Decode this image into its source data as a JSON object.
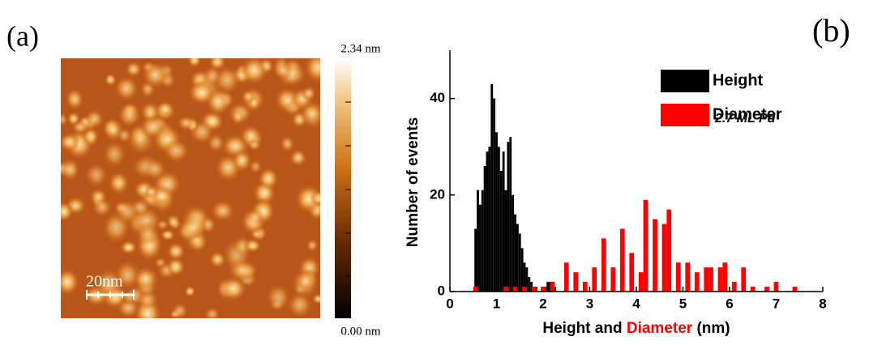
{
  "panel_a": {
    "label": "(a)",
    "colorbar_max": "2.34 nm",
    "colorbar_min": "0.00 nm",
    "scale_bar": "20nm"
  },
  "chart_data": {
    "type": "bar",
    "panel_label": "(b)",
    "xlabel": [
      "Height and",
      "Diameter",
      "(nm)"
    ],
    "ylabel": "Number of events",
    "annotation": "2.7 ML Pd",
    "xlim": [
      0,
      8
    ],
    "xticks": [
      0,
      1,
      2,
      3,
      4,
      5,
      6,
      7,
      8
    ],
    "ylim": [
      0,
      50
    ],
    "yticks": [
      0,
      20,
      40
    ],
    "legend": "upper right",
    "series": [
      {
        "name": "Height",
        "color": "#000000",
        "x": [
          0.55,
          0.6,
          0.65,
          0.7,
          0.75,
          0.8,
          0.85,
          0.9,
          0.95,
          1.0,
          1.05,
          1.1,
          1.15,
          1.2,
          1.25,
          1.3,
          1.35,
          1.4,
          1.45,
          1.5,
          1.55,
          1.6,
          1.65,
          1.7,
          1.75,
          1.8,
          1.85,
          1.9,
          1.95,
          2.0,
          2.05,
          2.1,
          2.15,
          2.2,
          2.25
        ],
        "values": [
          13,
          21,
          18,
          21,
          26,
          29,
          30,
          43,
          40,
          33,
          30,
          25,
          29,
          21,
          31,
          32,
          20,
          16,
          14,
          12,
          9,
          6,
          5,
          3,
          2,
          1,
          1,
          0,
          0,
          0,
          1,
          2,
          2,
          2,
          1
        ]
      },
      {
        "name": "Diameter",
        "color": "#ff0000",
        "x": [
          0.55,
          1.2,
          1.4,
          1.6,
          1.8,
          2.0,
          2.2,
          2.5,
          2.7,
          2.9,
          3.1,
          3.3,
          3.5,
          3.7,
          3.9,
          4.1,
          4.2,
          4.4,
          4.6,
          4.7,
          4.9,
          5.1,
          5.3,
          5.5,
          5.6,
          5.8,
          5.9,
          6.1,
          6.3,
          6.5,
          6.8,
          7.0,
          7.4
        ],
        "values": [
          1,
          1,
          1,
          1,
          1,
          1,
          2,
          6,
          4,
          2,
          5,
          11,
          5,
          13,
          8,
          4,
          19,
          15,
          14,
          17,
          6,
          6,
          4,
          5,
          5,
          5,
          6,
          2,
          5,
          1,
          1,
          2,
          1
        ]
      }
    ]
  }
}
